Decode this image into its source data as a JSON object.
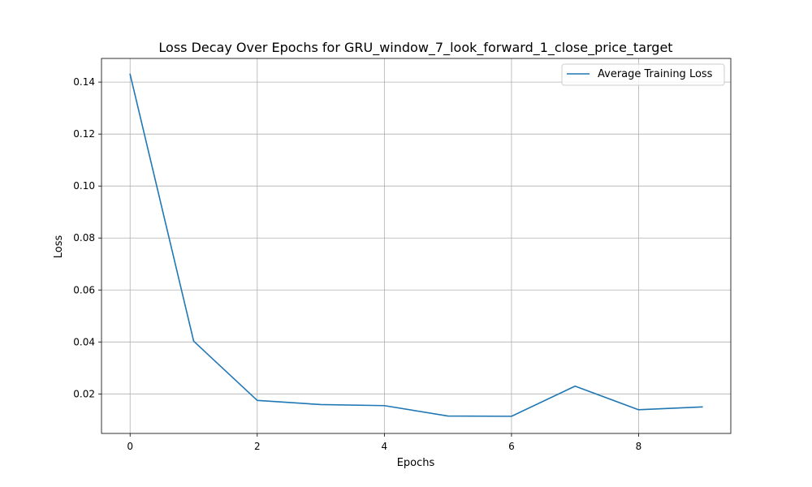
{
  "chart_data": {
    "type": "line",
    "title": "Loss Decay Over Epochs for GRU_window_7_look_forward_1_close_price_target",
    "xlabel": "Epochs",
    "ylabel": "Loss",
    "xlim": [
      -0.45,
      9.45
    ],
    "ylim": [
      0.0048,
      0.1491
    ],
    "xticks": [
      0,
      2,
      4,
      6,
      8
    ],
    "xtick_labels": [
      "0",
      "2",
      "4",
      "6",
      "8"
    ],
    "yticks": [
      0.02,
      0.04,
      0.06,
      0.08,
      0.1,
      0.12,
      0.14
    ],
    "ytick_labels": [
      "0.02",
      "0.04",
      "0.06",
      "0.08",
      "0.10",
      "0.12",
      "0.14"
    ],
    "grid": true,
    "legend_position": "upper right",
    "series": [
      {
        "name": "Average Training Loss",
        "color": "#1f77b4",
        "x": [
          0,
          1,
          2,
          3,
          4,
          5,
          6,
          7,
          8,
          9
        ],
        "values": [
          0.143,
          0.0403,
          0.0175,
          0.0159,
          0.0155,
          0.0115,
          0.0114,
          0.023,
          0.0139,
          0.015
        ]
      }
    ]
  }
}
